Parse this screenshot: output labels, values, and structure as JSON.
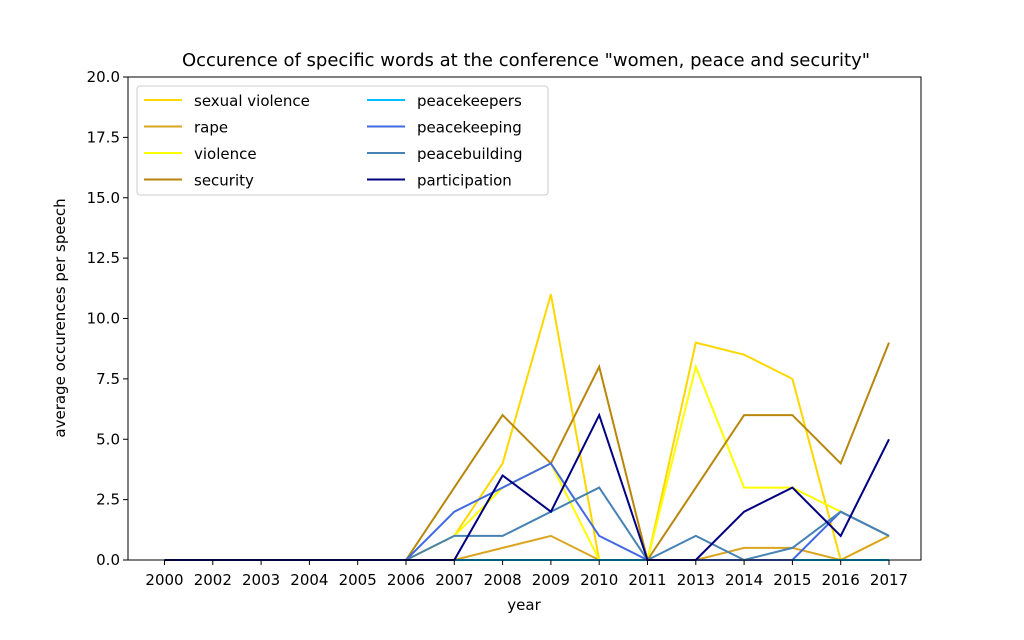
{
  "chart_data": {
    "type": "line",
    "title": "Occurence of specific words at the conference \"women, peace and security\"",
    "xlabel": "year",
    "ylabel": "average occurences per speech",
    "ylim": [
      0,
      20
    ],
    "yticks": [
      "0.0",
      "2.5",
      "5.0",
      "7.5",
      "10.0",
      "12.5",
      "15.0",
      "17.5",
      "20.0"
    ],
    "categories": [
      "2000",
      "2002",
      "2003",
      "2004",
      "2005",
      "2006",
      "2007",
      "2008",
      "2009",
      "2010",
      "2011",
      "2013",
      "2014",
      "2015",
      "2016",
      "2017"
    ],
    "grid": false,
    "legend_position": "top-left",
    "series": [
      {
        "name": "sexual violence",
        "color": "#FFD700",
        "values": [
          0,
          0,
          0,
          0,
          0,
          0,
          1,
          4,
          11,
          0,
          0,
          9,
          8.5,
          7.5,
          0,
          1
        ]
      },
      {
        "name": "rape",
        "color": "#DAA520",
        "values": [
          0,
          0,
          0,
          0,
          0,
          0,
          0,
          0.5,
          1,
          0,
          0,
          0,
          0.5,
          0.5,
          0,
          1
        ]
      },
      {
        "name": "violence",
        "color": "#FFFF00",
        "values": [
          0,
          0,
          0,
          0,
          0,
          0,
          1,
          3,
          4,
          0,
          0,
          8,
          3,
          3,
          2,
          1
        ]
      },
      {
        "name": "security",
        "color": "#B8860B",
        "values": [
          0,
          0,
          0,
          0,
          0,
          0,
          3,
          6,
          4,
          8,
          0,
          3,
          6,
          6,
          4,
          9
        ]
      },
      {
        "name": "peacekeepers",
        "color": "#00BFFF",
        "values": [
          0,
          0,
          0,
          0,
          0,
          0,
          0,
          0,
          0,
          0,
          0,
          0,
          0,
          0,
          0,
          0
        ]
      },
      {
        "name": "peacekeeping",
        "color": "#4169E1",
        "values": [
          0,
          0,
          0,
          0,
          0,
          0,
          2,
          3,
          4,
          1,
          0,
          0,
          0,
          0,
          2,
          1
        ]
      },
      {
        "name": "peacebuilding",
        "color": "#4682B4",
        "values": [
          0,
          0,
          0,
          0,
          0,
          0,
          1,
          1,
          2,
          3,
          0,
          1,
          0,
          0.5,
          2,
          1
        ]
      },
      {
        "name": "participation",
        "color": "#000080",
        "values": [
          0,
          0,
          0,
          0,
          0,
          0,
          0,
          3.5,
          2,
          6,
          0,
          0,
          2,
          3,
          1,
          5
        ]
      }
    ]
  }
}
